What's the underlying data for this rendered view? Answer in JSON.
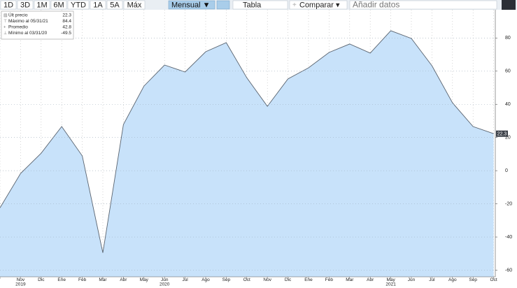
{
  "toolbar": {
    "periods": [
      "1D",
      "3D",
      "1M",
      "6M",
      "YTD",
      "1A",
      "5A",
      "Máx"
    ],
    "frequency": "Mensual ▼",
    "table": "Tabla",
    "compare": "Comparar ▾",
    "add_data": "Añadir datos"
  },
  "chart_data": {
    "type": "area",
    "color": "#c8e2fa",
    "line_color": "#5a6470",
    "categories": [
      null,
      "Nov",
      "Dic",
      "Ene",
      "Feb",
      "Mar",
      "Abr",
      "May",
      "Jun",
      "Jul",
      "Ago",
      "Sep",
      "Oct",
      "Nov",
      "Dic",
      "Ene",
      "Feb",
      "Mar",
      "Abr",
      "May",
      "Jun",
      "Jul",
      "Ago",
      "Sep",
      "Oct"
    ],
    "category_years": [
      null,
      "2019",
      null,
      null,
      null,
      null,
      null,
      null,
      "2020",
      null,
      null,
      null,
      null,
      null,
      null,
      null,
      null,
      null,
      null,
      "2021",
      null,
      null,
      null,
      null,
      null
    ],
    "values": [
      -22.4,
      -1.7,
      10.5,
      26.6,
      8.9,
      -49.5,
      27.8,
      51,
      63.7,
      59.5,
      71.7,
      77.2,
      56,
      38.8,
      55.3,
      62,
      71.3,
      76.4,
      70.9,
      84.4,
      79.7,
      63.3,
      40.9,
      26.6,
      22.3
    ],
    "ylim": [
      -64,
      97
    ],
    "yticks": [
      80,
      60,
      40,
      20,
      0,
      -20,
      -40,
      -60
    ],
    "grid": true,
    "legend": [
      {
        "label": "Últ precio",
        "value": 22.3
      },
      {
        "label": "Máximo al 05/31/21",
        "value": 84.4
      },
      {
        "label": "Promedio",
        "value": 42.8
      },
      {
        "label": "Mínimo al 03/31/20",
        "value": -49.5
      }
    ]
  }
}
